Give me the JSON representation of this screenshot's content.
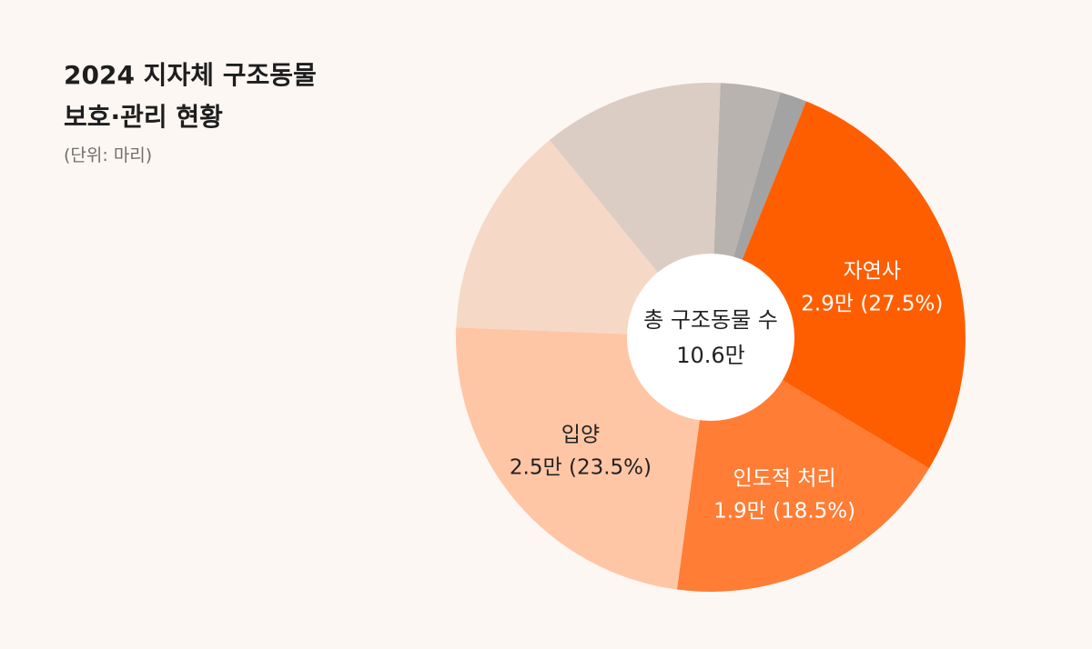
{
  "title_lines": [
    "2024 지자체 구조동물",
    "보호·관리 현황"
  ],
  "unit": "(단위: 마리)",
  "center": {
    "label": "총 구조동물 수",
    "value": "10.6만"
  },
  "chart_data": {
    "type": "pie",
    "donut": true,
    "slices": [
      {
        "label": "자연사",
        "value_text": "2.9만 (27.5%)",
        "percent": 27.5,
        "color": "#ff5e00",
        "text_color": "#ffffff"
      },
      {
        "label": "인도적 처리",
        "value_text": "1.9만 (18.5%)",
        "percent": 18.5,
        "color": "#ff7d35",
        "text_color": "#ffffff"
      },
      {
        "label": "입양",
        "value_text": "2.5만 (23.5%)",
        "percent": 23.5,
        "color": "#ffc6a5",
        "text_color": "#222222"
      },
      {
        "label": "",
        "value_text": "",
        "percent": 13.5,
        "color": "#f6d8c7",
        "text_color": "#222222"
      },
      {
        "label": "",
        "value_text": "",
        "percent": 11.5,
        "color": "#dbcdc4",
        "text_color": "#222222"
      },
      {
        "label": "",
        "value_text": "",
        "percent": 3.8,
        "color": "#b9b3b0",
        "text_color": "#222222"
      },
      {
        "label": "",
        "value_text": "",
        "percent": 1.7,
        "color": "#a3a3a3",
        "text_color": "#222222"
      }
    ]
  }
}
